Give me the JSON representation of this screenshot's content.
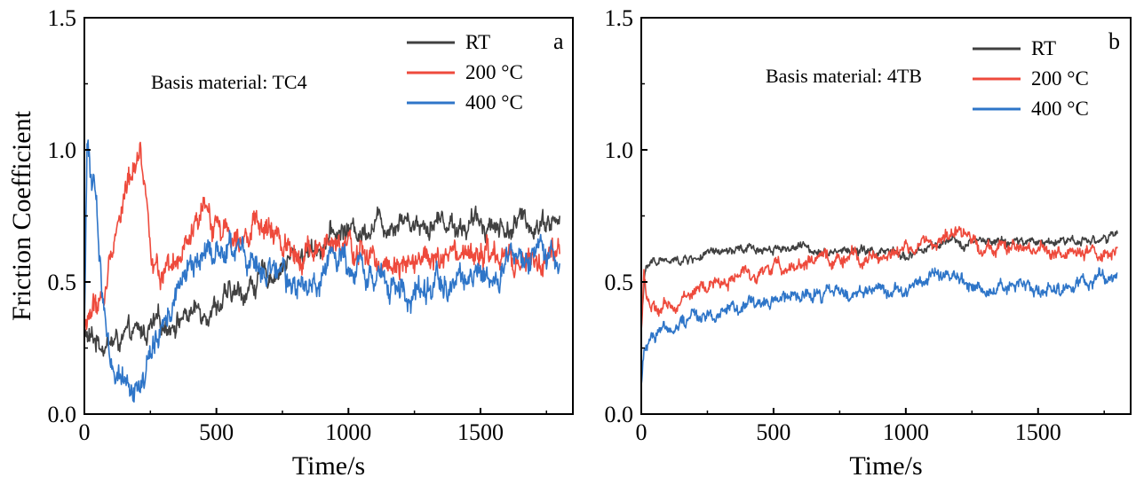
{
  "chart_data": [
    {
      "panel_label": "a",
      "type": "line",
      "annotation": "Basis material: TC4",
      "xlabel": "Time/s",
      "ylabel": "Friction Coefficient",
      "xlim": [
        0,
        1850
      ],
      "ylim": [
        0.0,
        1.5
      ],
      "xticks": [
        "0",
        "500",
        "1000",
        "1500"
      ],
      "yticks": [
        "0.0",
        "0.5",
        "1.0",
        "1.5"
      ],
      "legend_position": "top-right",
      "grid": false,
      "series": [
        {
          "name": "RT",
          "color": "#404040",
          "x": [
            0,
            20,
            50,
            100,
            150,
            200,
            250,
            300,
            350,
            400,
            450,
            500,
            550,
            600,
            650,
            700,
            750,
            800,
            850,
            900,
            950,
            1000,
            1050,
            1100,
            1150,
            1200,
            1250,
            1300,
            1350,
            1400,
            1450,
            1500,
            1550,
            1600,
            1650,
            1700,
            1750,
            1800
          ],
          "y": [
            0.3,
            0.28,
            0.28,
            0.27,
            0.28,
            0.3,
            0.32,
            0.34,
            0.36,
            0.38,
            0.4,
            0.42,
            0.44,
            0.46,
            0.5,
            0.53,
            0.56,
            0.6,
            0.62,
            0.65,
            0.68,
            0.7,
            0.69,
            0.74,
            0.72,
            0.75,
            0.73,
            0.72,
            0.74,
            0.72,
            0.71,
            0.73,
            0.72,
            0.7,
            0.73,
            0.72,
            0.74,
            0.72
          ],
          "noise": 0.05
        },
        {
          "name": "200 °C",
          "color": "#ee4a3c",
          "x": [
            0,
            20,
            50,
            80,
            100,
            130,
            160,
            190,
            210,
            230,
            260,
            290,
            320,
            350,
            400,
            450,
            500,
            550,
            600,
            650,
            700,
            750,
            800,
            850,
            900,
            950,
            1000,
            1050,
            1100,
            1150,
            1200,
            1250,
            1300,
            1350,
            1400,
            1450,
            1500,
            1550,
            1600,
            1650,
            1700,
            1750,
            1800
          ],
          "y": [
            0.3,
            0.38,
            0.42,
            0.45,
            0.6,
            0.75,
            0.85,
            0.95,
            1.05,
            0.85,
            0.6,
            0.5,
            0.5,
            0.55,
            0.65,
            0.75,
            0.72,
            0.7,
            0.72,
            0.7,
            0.68,
            0.65,
            0.63,
            0.62,
            0.62,
            0.63,
            0.62,
            0.6,
            0.58,
            0.58,
            0.6,
            0.6,
            0.58,
            0.57,
            0.58,
            0.58,
            0.6,
            0.58,
            0.57,
            0.56,
            0.58,
            0.57,
            0.58
          ],
          "noise": 0.06
        },
        {
          "name": "400 °C",
          "color": "#2e75c8",
          "x": [
            0,
            10,
            20,
            40,
            60,
            80,
            100,
            120,
            140,
            160,
            180,
            200,
            220,
            240,
            260,
            280,
            300,
            350,
            400,
            450,
            500,
            550,
            600,
            650,
            700,
            750,
            800,
            850,
            900,
            950,
            1000,
            1050,
            1100,
            1150,
            1200,
            1250,
            1300,
            1350,
            1400,
            1450,
            1500,
            1550,
            1600,
            1650,
            1700,
            1750,
            1800
          ],
          "y": [
            0.3,
            1.0,
            0.95,
            0.85,
            0.55,
            0.35,
            0.22,
            0.17,
            0.14,
            0.15,
            0.13,
            0.1,
            0.12,
            0.18,
            0.25,
            0.28,
            0.35,
            0.45,
            0.55,
            0.6,
            0.62,
            0.63,
            0.61,
            0.55,
            0.52,
            0.5,
            0.48,
            0.46,
            0.55,
            0.6,
            0.58,
            0.58,
            0.52,
            0.48,
            0.47,
            0.45,
            0.47,
            0.5,
            0.5,
            0.52,
            0.52,
            0.5,
            0.55,
            0.58,
            0.57,
            0.58,
            0.6
          ],
          "noise": 0.06
        }
      ]
    },
    {
      "panel_label": "b",
      "type": "line",
      "annotation": "Basis material: 4TB",
      "xlabel": "Time/s",
      "ylabel": "",
      "xlim": [
        0,
        1850
      ],
      "ylim": [
        0.0,
        1.5
      ],
      "xticks": [
        "0",
        "500",
        "1000",
        "1500"
      ],
      "yticks": [
        "0.0",
        "0.5",
        "1.0",
        "1.5"
      ],
      "legend_position": "top-right",
      "grid": false,
      "series": [
        {
          "name": "RT",
          "color": "#404040",
          "x": [
            0,
            10,
            20,
            40,
            60,
            80,
            100,
            150,
            200,
            300,
            400,
            500,
            600,
            700,
            800,
            900,
            1000,
            1100,
            1200,
            1300,
            1400,
            1500,
            1600,
            1700,
            1800
          ],
          "y": [
            0.35,
            0.5,
            0.55,
            0.57,
            0.58,
            0.59,
            0.57,
            0.58,
            0.59,
            0.61,
            0.62,
            0.63,
            0.63,
            0.62,
            0.62,
            0.61,
            0.6,
            0.63,
            0.65,
            0.65,
            0.65,
            0.65,
            0.66,
            0.66,
            0.67
          ],
          "noise": 0.02
        },
        {
          "name": "200 °C",
          "color": "#ee4a3c",
          "x": [
            0,
            10,
            20,
            40,
            60,
            100,
            150,
            200,
            250,
            300,
            400,
            500,
            600,
            700,
            800,
            900,
            1000,
            1100,
            1150,
            1200,
            1250,
            1300,
            1400,
            1500,
            1600,
            1700,
            1800
          ],
          "y": [
            0.3,
            0.55,
            0.45,
            0.4,
            0.38,
            0.4,
            0.43,
            0.46,
            0.48,
            0.5,
            0.53,
            0.55,
            0.57,
            0.58,
            0.59,
            0.6,
            0.62,
            0.65,
            0.67,
            0.68,
            0.66,
            0.64,
            0.62,
            0.62,
            0.61,
            0.6,
            0.6
          ],
          "noise": 0.03
        },
        {
          "name": "400 °C",
          "color": "#2e75c8",
          "x": [
            0,
            10,
            20,
            40,
            60,
            100,
            150,
            200,
            300,
            400,
            500,
            600,
            700,
            800,
            900,
            1000,
            1050,
            1100,
            1150,
            1200,
            1300,
            1400,
            1500,
            1600,
            1700,
            1800
          ],
          "y": [
            0.1,
            0.22,
            0.28,
            0.3,
            0.32,
            0.33,
            0.35,
            0.37,
            0.39,
            0.41,
            0.43,
            0.44,
            0.45,
            0.46,
            0.47,
            0.48,
            0.5,
            0.53,
            0.51,
            0.5,
            0.49,
            0.48,
            0.47,
            0.48,
            0.5,
            0.52
          ],
          "noise": 0.03
        }
      ]
    }
  ]
}
